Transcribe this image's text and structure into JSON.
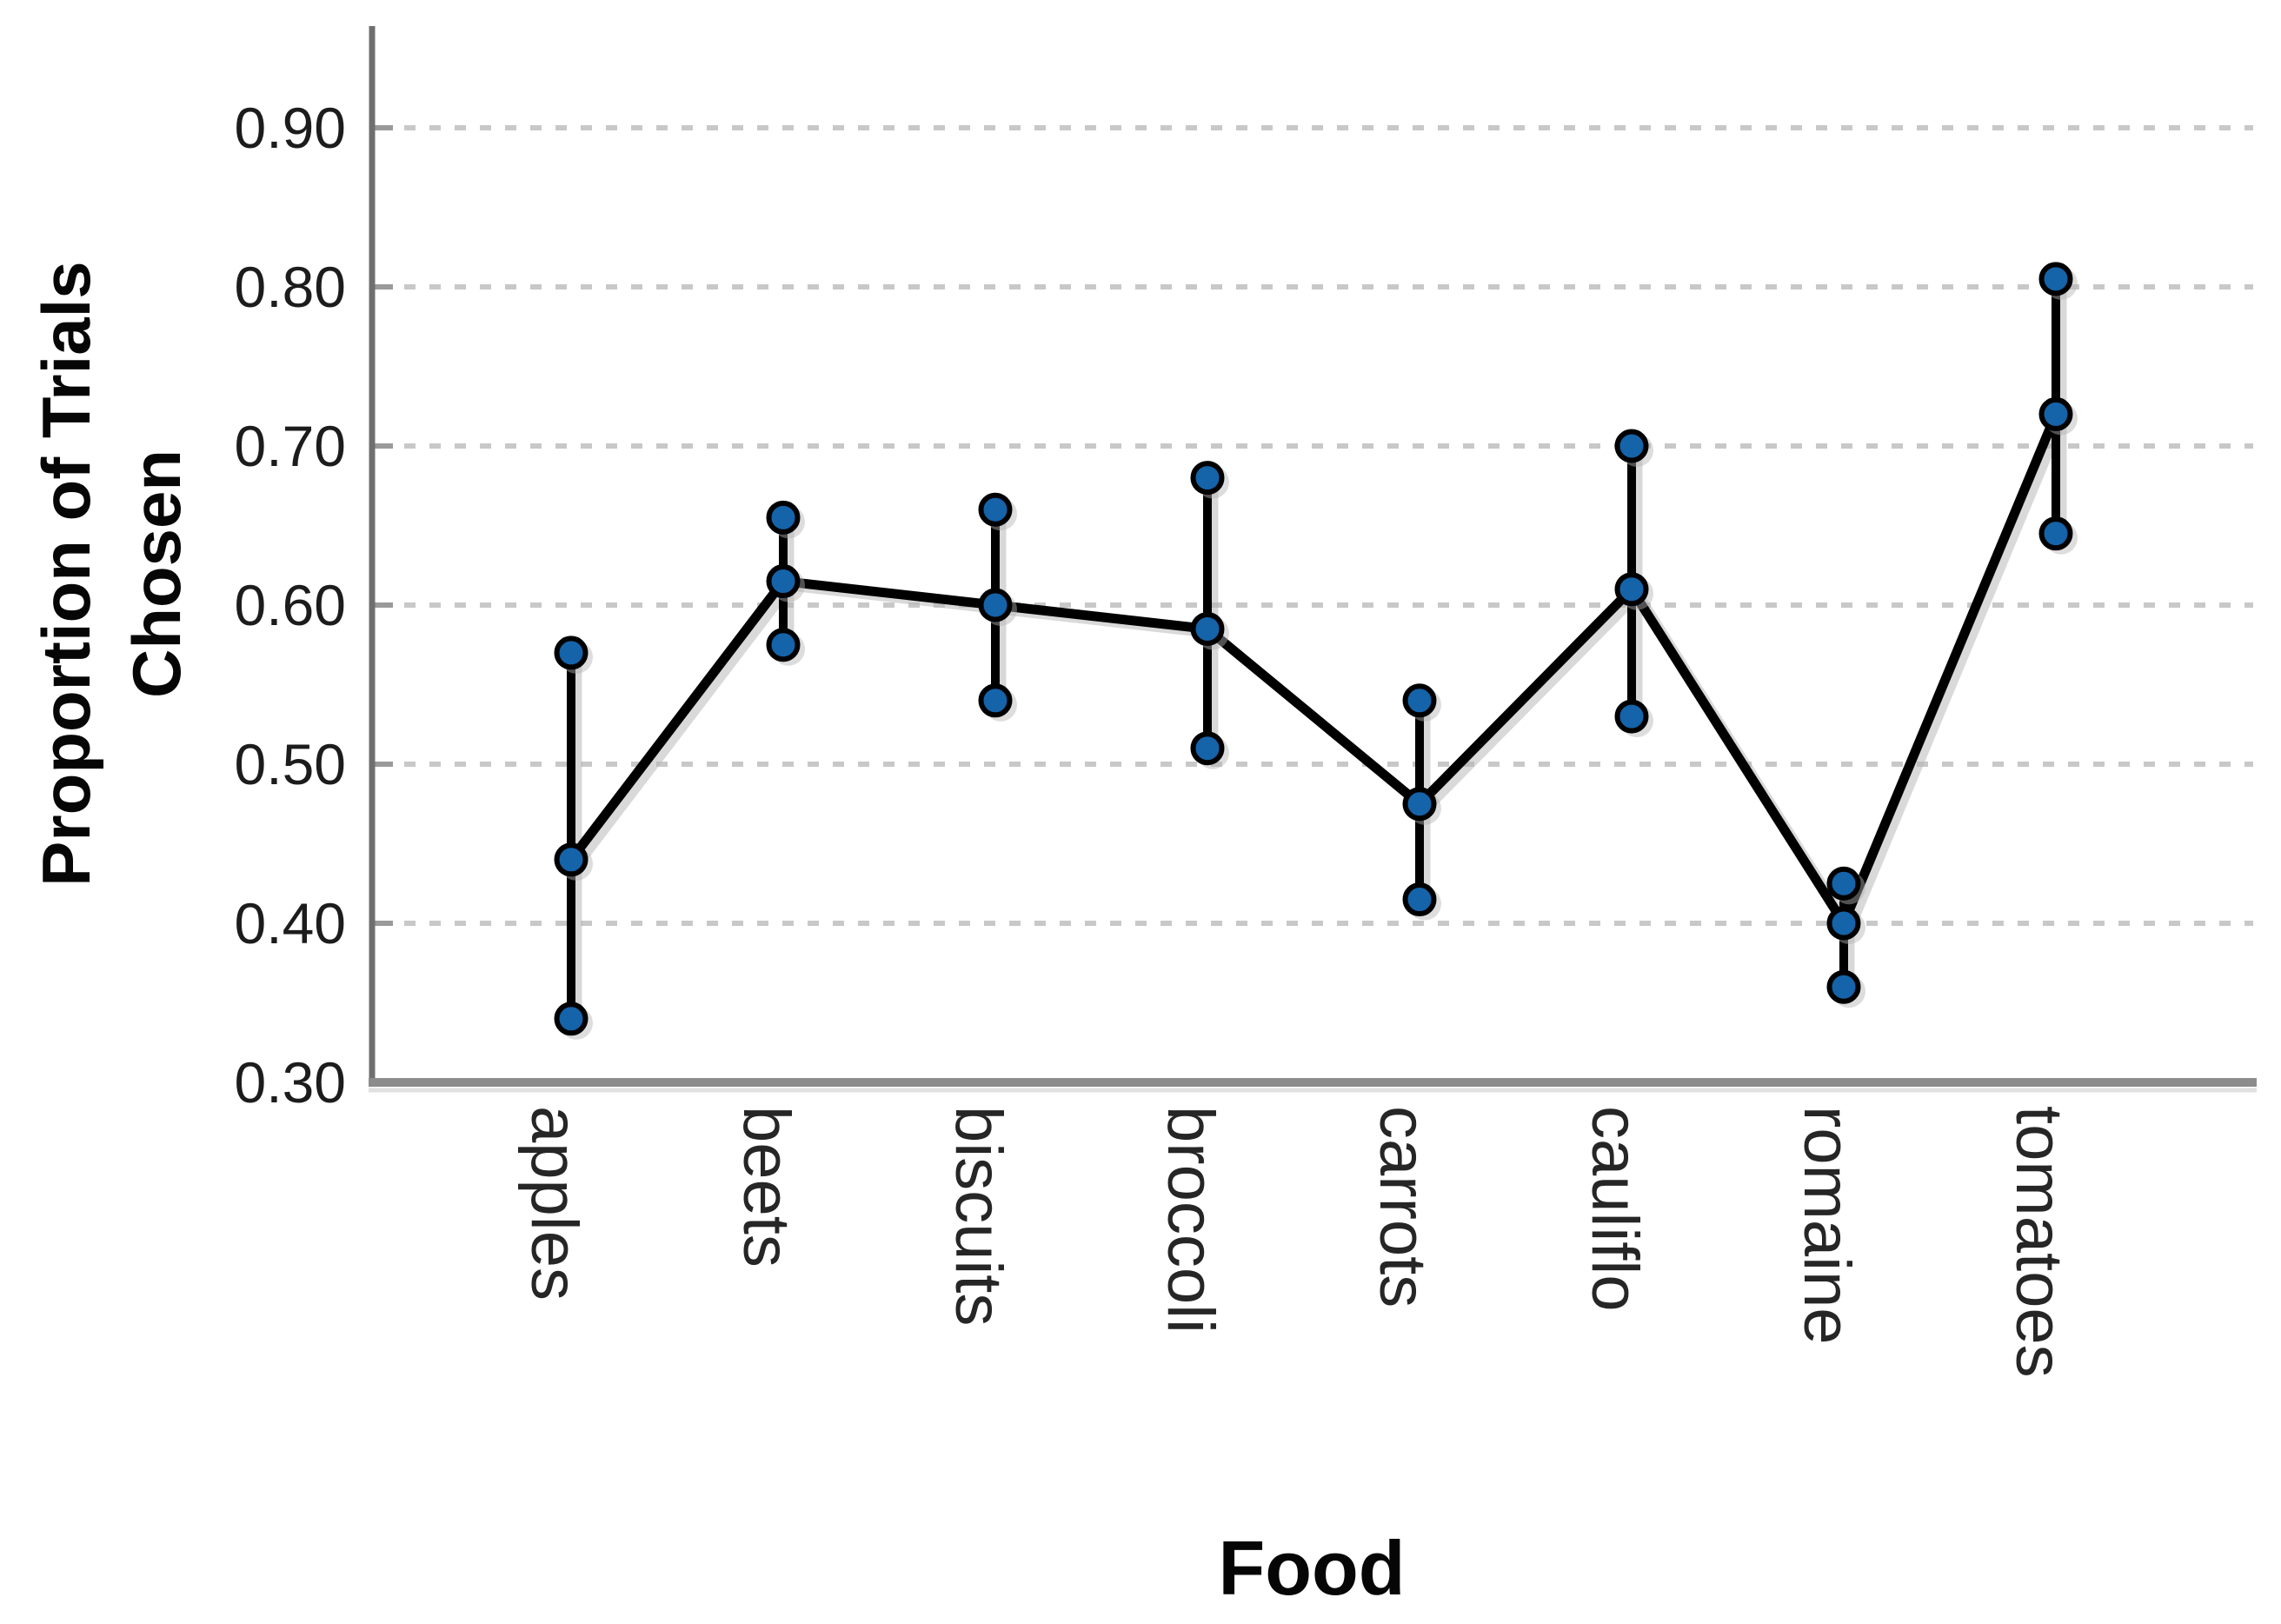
{
  "chart_data": {
    "type": "line",
    "subtype": "means-with-error-bars",
    "title": "",
    "xlabel": "Food",
    "ylabel": "Proportion of Trials Chosen",
    "ylabel_lines": [
      "Proportion of Trials",
      "Chosen"
    ],
    "categories": [
      "apples",
      "beets",
      "biscuits",
      "broccoli",
      "carrots",
      "cauliflo",
      "romaine",
      "tomatoes"
    ],
    "series": [
      {
        "name": "mean",
        "values": [
          0.44,
          0.615,
          0.6,
          0.585,
          0.475,
          0.61,
          0.4,
          0.72
        ]
      },
      {
        "name": "upper",
        "values": [
          0.57,
          0.655,
          0.66,
          0.68,
          0.54,
          0.7,
          0.425,
          0.805
        ]
      },
      {
        "name": "lower",
        "values": [
          0.34,
          0.575,
          0.54,
          0.51,
          0.415,
          0.53,
          0.36,
          0.645
        ]
      }
    ],
    "ylim": [
      0.3,
      0.9
    ],
    "yticks": [
      0.3,
      0.4,
      0.5,
      0.6,
      0.7,
      0.8,
      0.9
    ],
    "ytick_labels": [
      "0.30",
      "0.40",
      "0.50",
      "0.60",
      "0.70",
      "0.80",
      "0.90"
    ],
    "grid": "horizontal dashed gridlines at 0.40 through 0.90",
    "legend": "none",
    "colors": {
      "line": "#000000",
      "marker_fill": "#1563a9",
      "marker_stroke": "#000000",
      "gridline": "#c8c8c8",
      "y_axis": "#6f6f6f",
      "x_axis": "#8c8c8c",
      "tick_mark": "#9a9a9a",
      "shadow": "#b3b3b3",
      "background": "#ffffff"
    }
  }
}
